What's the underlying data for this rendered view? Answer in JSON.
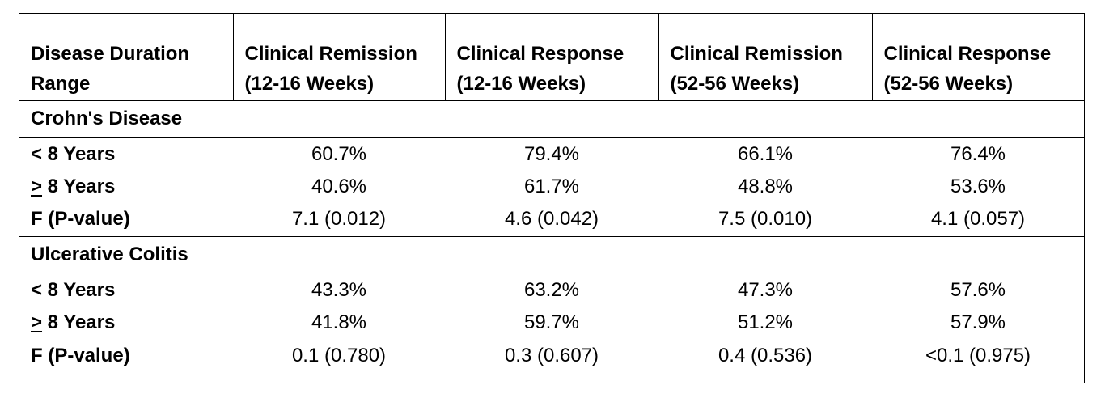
{
  "headers": [
    "Disease Duration Range",
    "Clinical Remission (12-16 Weeks)",
    "Clinical Response (12-16 Weeks)",
    "Clinical Remission (52-56 Weeks)",
    "Clinical Response (52-56 Weeks)"
  ],
  "sections": [
    {
      "title": "Crohn's Disease",
      "rows": [
        {
          "label_prefix": "<",
          "label_rest": " 8 Years",
          "values": [
            "60.7%",
            "79.4%",
            "66.1%",
            "76.4%"
          ]
        },
        {
          "label_prefix": ">",
          "label_rest": " 8 Years",
          "values": [
            "40.6%",
            "61.7%",
            "48.8%",
            "53.6%"
          ]
        },
        {
          "label_prefix": "F (P-value)",
          "label_rest": "",
          "values": [
            "7.1 (0.012)",
            "4.6 (0.042)",
            "7.5 (0.010)",
            "4.1 (0.057)"
          ]
        }
      ]
    },
    {
      "title": "Ulcerative Colitis",
      "rows": [
        {
          "label_prefix": "<",
          "label_rest": " 8 Years",
          "values": [
            "43.3%",
            "63.2%",
            "47.3%",
            "57.6%"
          ]
        },
        {
          "label_prefix": ">",
          "label_rest": " 8 Years",
          "values": [
            "41.8%",
            "59.7%",
            "51.2%",
            "57.9%"
          ]
        },
        {
          "label_prefix": "F (P-value)",
          "label_rest": "",
          "values": [
            "0.1 (0.780)",
            "0.3 (0.607)",
            "0.4 (0.536)",
            "<0.1 (0.975)"
          ]
        }
      ]
    }
  ]
}
